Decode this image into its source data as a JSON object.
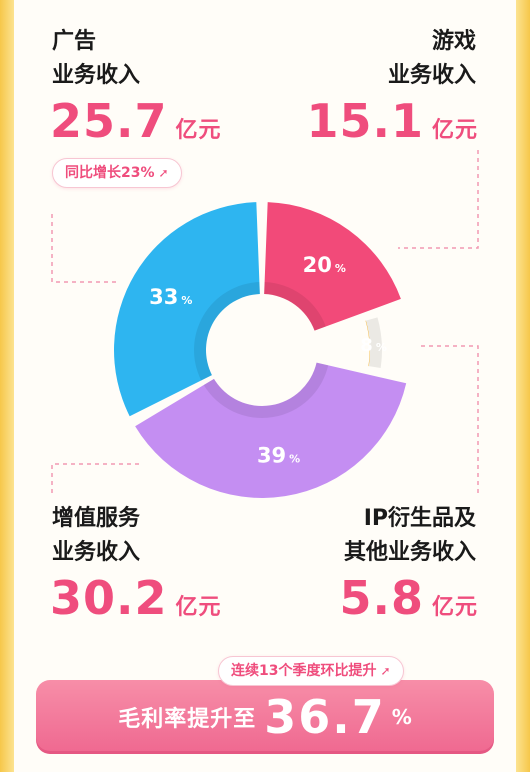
{
  "chart_data": {
    "type": "donut",
    "title": "",
    "slices": [
      {
        "label": "游戏",
        "percent": 20,
        "color": "#f24a79"
      },
      {
        "label": "IP衍生品及其他",
        "percent": 8,
        "color": "#f8b52d"
      },
      {
        "label": "增值服务",
        "percent": 39,
        "color": "#c48ef2"
      },
      {
        "label": "广告",
        "percent": 33,
        "color": "#2eb5f0"
      }
    ],
    "percent_suffix": "%"
  },
  "blocks": {
    "ads": {
      "line1": "广告",
      "line2": "业务收入",
      "value": "25.7",
      "unit": "亿元",
      "badge": "同比增长23%"
    },
    "games": {
      "line1": "游戏",
      "line2": "业务收入",
      "value": "15.1",
      "unit": "亿元"
    },
    "vas": {
      "line1": "增值服务",
      "line2": "业务收入",
      "value": "30.2",
      "unit": "亿元"
    },
    "ip": {
      "line1": "IP衍生品及",
      "line2": "其他业务收入",
      "value": "5.8",
      "unit": "亿元"
    }
  },
  "banner": {
    "badge": "连续13个季度环比提升",
    "text": "毛利率提升至",
    "value": "36.7",
    "suffix": "%"
  },
  "colors": {
    "accent": "#ef4d7d",
    "banner": "#ef6890"
  }
}
